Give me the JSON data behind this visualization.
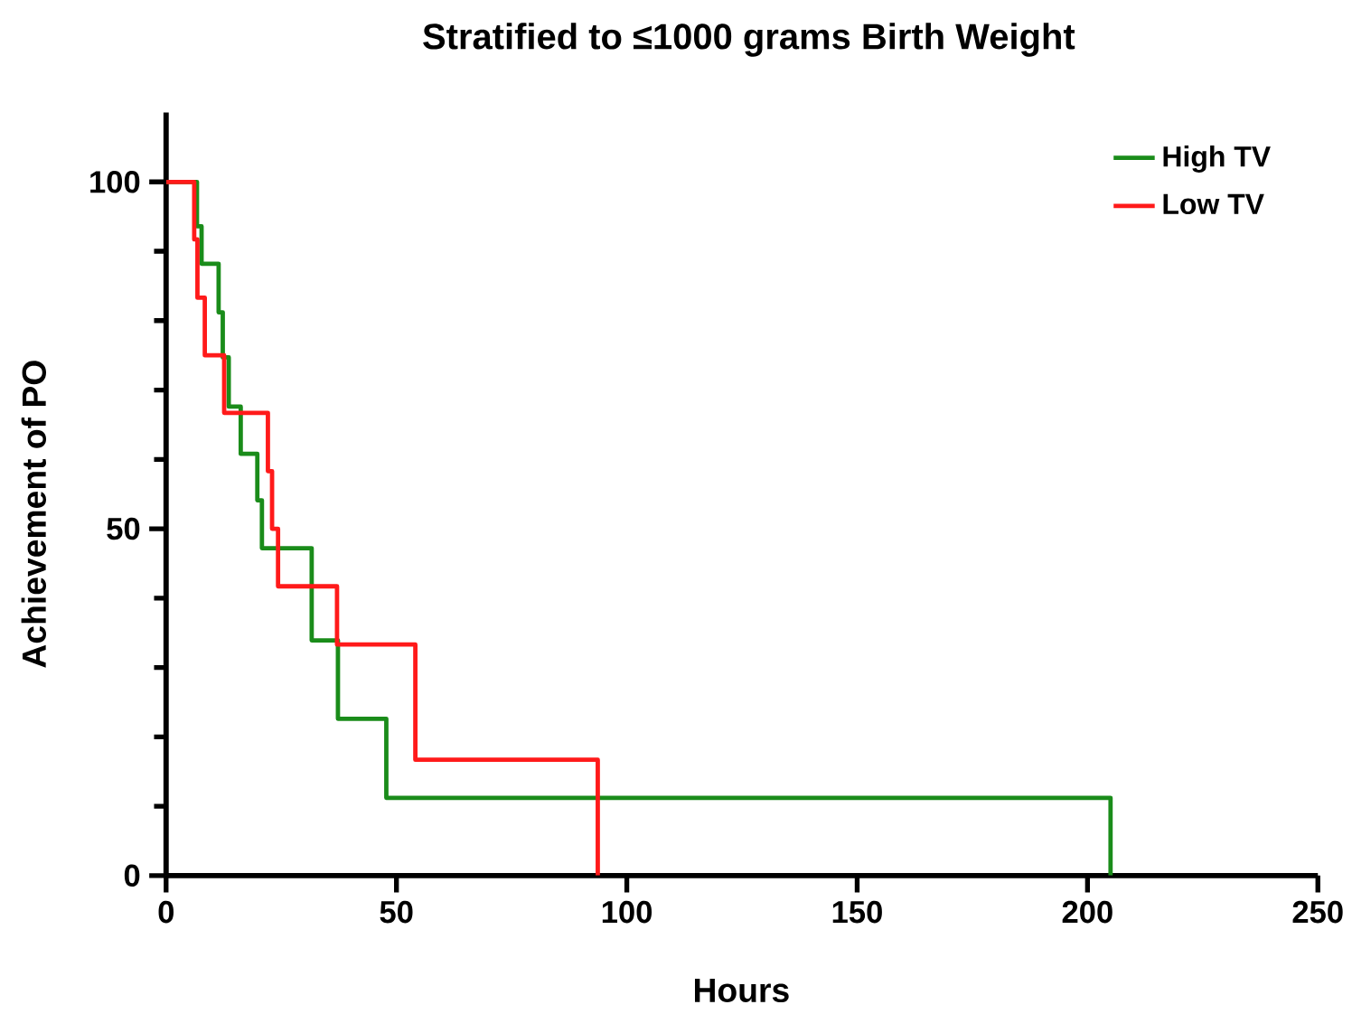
{
  "chart_data": {
    "type": "step",
    "title": "Stratified to ≤1000 grams Birth Weight",
    "xlabel": "Hours",
    "ylabel": "Achievement of PO",
    "xlim": [
      0,
      250
    ],
    "xticks": [
      0,
      50,
      100,
      150,
      200,
      250
    ],
    "ylim": [
      0,
      110
    ],
    "yticks": [
      0,
      50,
      100
    ],
    "legend": "top right",
    "line_style": "solid",
    "series": [
      {
        "name": "High TV",
        "color": "#1a8c1a",
        "x": [
          0,
          6.7,
          7.7,
          11.4,
          12.3,
          13.6,
          16.2,
          19.8,
          20.8,
          31.6,
          37.3,
          47.8,
          205
        ],
        "values": [
          100,
          93.6,
          88.2,
          81.2,
          74.7,
          67.6,
          60.8,
          54.1,
          47.2,
          33.9,
          22.6,
          11.2,
          0
        ]
      },
      {
        "name": "Low TV",
        "color": "#ff1a1a",
        "x": [
          0,
          6.1,
          6.8,
          8.4,
          12.6,
          22.1,
          23,
          24.3,
          37.1,
          54.1,
          93.7
        ],
        "values": [
          100,
          91.7,
          83.3,
          75,
          66.7,
          58.3,
          50,
          41.7,
          33.3,
          16.7,
          0
        ]
      }
    ]
  }
}
